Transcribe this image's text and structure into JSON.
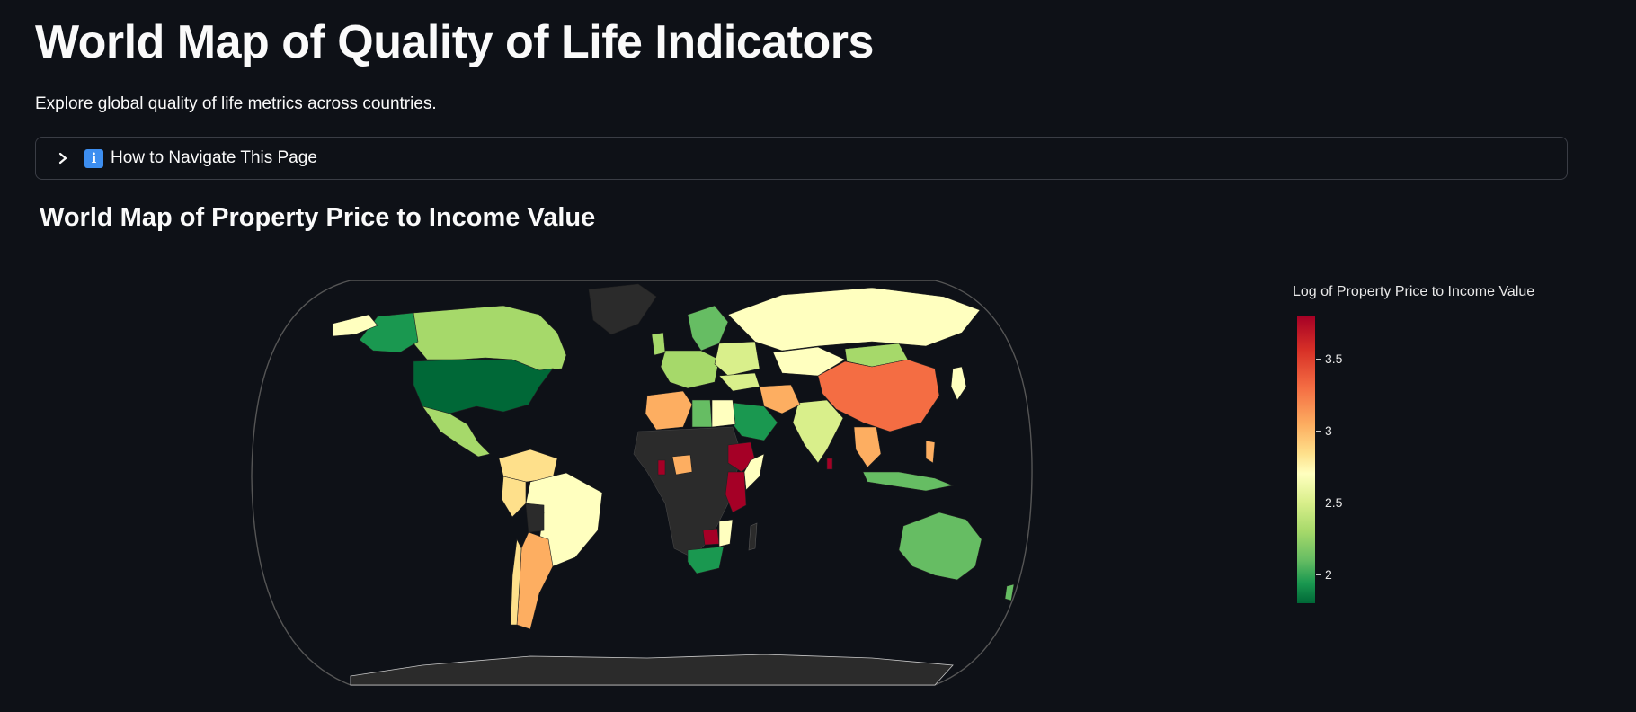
{
  "page": {
    "title": "World Map of Quality of Life Indicators",
    "subtitle": "Explore global quality of life metrics across countries."
  },
  "expander": {
    "label": "How to Navigate This Page",
    "info_icon": "info-icon",
    "chevron_icon": "chevron-right-icon",
    "info_glyph": "i"
  },
  "section": {
    "title": "World Map of Property Price to Income Value"
  },
  "chart_data": {
    "type": "choropleth",
    "colorbar_title": "Log of Property Price to Income Value",
    "colorscale": "RdYlGn reversed",
    "color_range": [
      1.8,
      3.8
    ],
    "ticks": [
      2,
      2.5,
      3,
      3.5
    ],
    "tick_labels": [
      "2",
      "2.5",
      "3",
      "3.5"
    ],
    "no_data_color": "#2b2b2b"
  },
  "colors": {
    "background": "#0e1117",
    "ocean": "#0e1117",
    "coast": "#c8c8c8",
    "no_data": "#2b2b2b"
  }
}
